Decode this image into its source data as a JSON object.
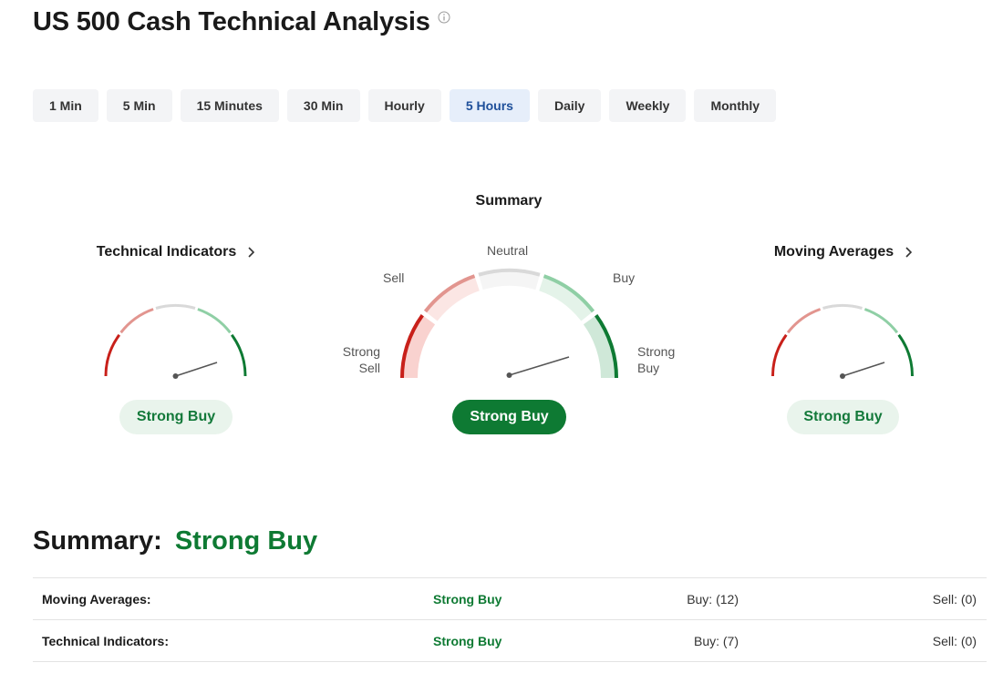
{
  "header": {
    "title": "US 500 Cash Technical Analysis"
  },
  "tabs": [
    {
      "label": "1 Min",
      "active": false
    },
    {
      "label": "5 Min",
      "active": false
    },
    {
      "label": "15 Minutes",
      "active": false
    },
    {
      "label": "30 Min",
      "active": false
    },
    {
      "label": "Hourly",
      "active": false
    },
    {
      "label": "5 Hours",
      "active": true
    },
    {
      "label": "Daily",
      "active": false
    },
    {
      "label": "Weekly",
      "active": false
    },
    {
      "label": "Monthly",
      "active": false
    }
  ],
  "gauges": {
    "summary": {
      "heading": "Summary",
      "result": "Strong Buy",
      "labels": {
        "strong_sell_1": "Strong",
        "strong_sell_2": "Sell",
        "sell": "Sell",
        "neutral": "Neutral",
        "buy": "Buy",
        "strong_buy_1": "Strong",
        "strong_buy_2": "Buy"
      }
    },
    "technical_indicators": {
      "heading": "Technical Indicators",
      "result": "Strong Buy"
    },
    "moving_averages": {
      "heading": "Moving Averages",
      "result": "Strong Buy"
    }
  },
  "summary": {
    "label": "Summary:",
    "value": "Strong Buy"
  },
  "table": [
    {
      "name": "Moving Averages:",
      "signal": "Strong Buy",
      "buy": "Buy: (12)",
      "sell": "Sell: (0)"
    },
    {
      "name": "Technical Indicators:",
      "signal": "Strong Buy",
      "buy": "Buy: (7)",
      "sell": "Sell: (0)"
    }
  ],
  "colors": {
    "strong_buy": "#0e7a33",
    "buy": "#8fcfa5",
    "neutral": "#d9d9d9",
    "sell": "#e2958f",
    "strong_sell": "#c8201a",
    "active_tab_text": "#1e4f9a"
  },
  "icons": {
    "info": "info-circle-icon",
    "chevron": "chevron-right-icon"
  }
}
